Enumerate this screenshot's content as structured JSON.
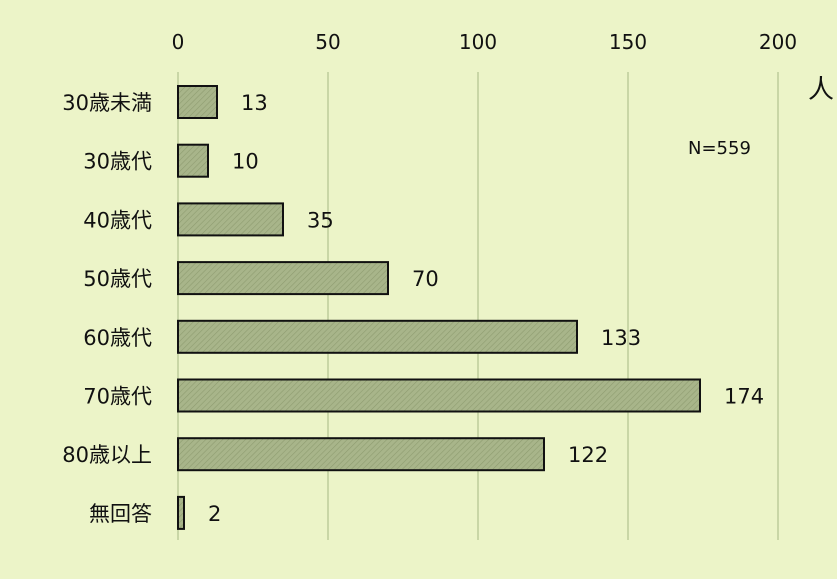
{
  "colors": {
    "background": "#ecf4c8",
    "bar_fill": "#a8b58a",
    "bar_stroke": "#111111",
    "gridline": "#c9d6a6"
  },
  "chart_data": {
    "type": "bar",
    "orientation": "horizontal",
    "categories": [
      "30歳未満",
      "30歳代",
      "40歳代",
      "50歳代",
      "60歳代",
      "70歳代",
      "80歳以上",
      "無回答"
    ],
    "values": [
      13,
      10,
      35,
      70,
      133,
      174,
      122,
      2
    ],
    "value_labels": [
      "13",
      "10",
      "35",
      "70",
      "133",
      "174",
      "122",
      "2"
    ],
    "xlim": [
      0,
      200
    ],
    "x_ticks": [
      "0",
      "50",
      "100",
      "150",
      "200"
    ],
    "x_axis_position": "top",
    "unit": "人",
    "annotation": "N=559",
    "grid": true,
    "bar_pattern": "diagonal-hatch"
  }
}
